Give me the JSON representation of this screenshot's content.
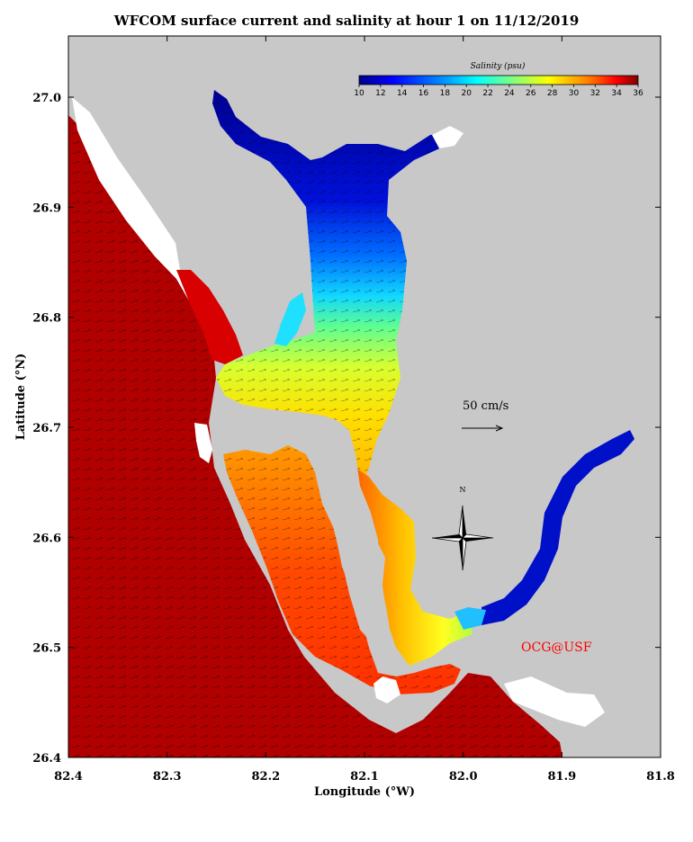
{
  "title": "WFCOM surface current and salinity at hour 1 on 11/12/2019",
  "xlabel": "Longitude (°W)",
  "ylabel": "Latitude (°N)",
  "x_ticks": [
    "82.4",
    "82.3",
    "82.2",
    "82.1",
    "82.0",
    "81.9",
    "81.8"
  ],
  "y_ticks": [
    "27.0",
    "26.9",
    "26.8",
    "26.7",
    "26.6",
    "26.5",
    "26.4"
  ],
  "colorbar": {
    "title": "Salinity (psu)",
    "ticks": [
      "10",
      "12",
      "14",
      "16",
      "18",
      "20",
      "22",
      "24",
      "26",
      "28",
      "30",
      "32",
      "34",
      "36"
    ]
  },
  "scale_label": "50 cm/s",
  "compass_label": "N",
  "credit": "OCG@USF",
  "colors": {
    "land": "#c8c8c8",
    "gulf_water": "#b00000",
    "credit": "#ff0000"
  }
}
